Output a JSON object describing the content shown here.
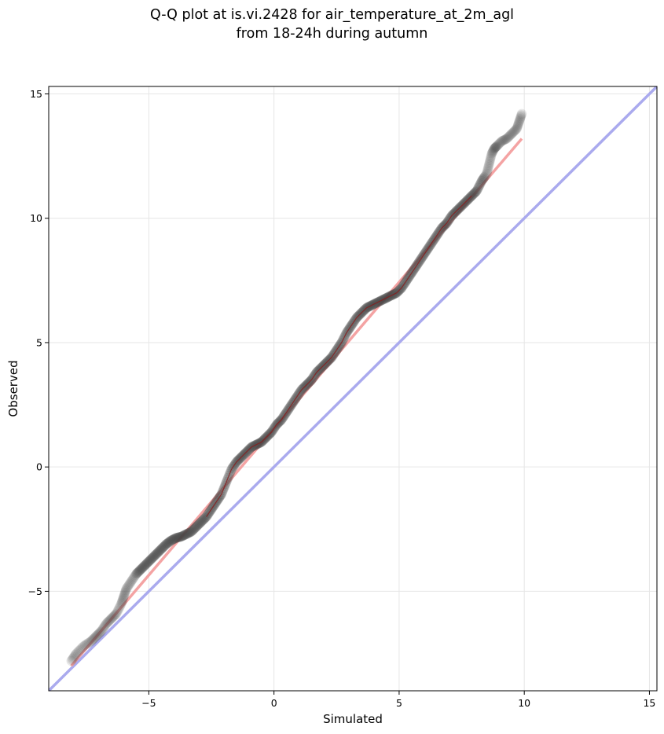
{
  "chart_data": {
    "type": "scatter",
    "title_line1": "Q-Q plot at is.vi.2428 for air_temperature_at_2m_agl",
    "title_line2": "from 18-24h during autumn",
    "xlabel": "Simulated",
    "ylabel": "Observed",
    "xlim": [
      -9.0,
      15.3
    ],
    "ylim": [
      -9.0,
      15.3
    ],
    "x_ticks": [
      -5,
      0,
      5,
      10,
      15
    ],
    "y_ticks": [
      -5,
      0,
      5,
      10,
      15
    ],
    "x_tick_labels": [
      "−5",
      "0",
      "5",
      "10",
      "15"
    ],
    "y_tick_labels": [
      "−5",
      "0",
      "5",
      "10",
      "15"
    ],
    "grid": true,
    "quantile_points": {
      "x": [
        -8.1,
        -7.9,
        -7.6,
        -7.3,
        -7.1,
        -6.9,
        -6.7,
        -6.5,
        -6.3,
        -6.1,
        -6.0,
        -5.9,
        -5.7,
        -5.5,
        -5.3,
        -5.1,
        -4.9,
        -4.7,
        -4.5,
        -4.3,
        -4.1,
        -3.9,
        -3.7,
        -3.5,
        -3.3,
        -3.1,
        -2.9,
        -2.7,
        -2.5,
        -2.3,
        -2.1,
        -1.9,
        -1.7,
        -1.5,
        -1.3,
        -1.1,
        -0.9,
        -0.7,
        -0.5,
        -0.3,
        -0.1,
        0.1,
        0.3,
        0.5,
        0.7,
        0.9,
        1.1,
        1.3,
        1.5,
        1.7,
        1.9,
        2.1,
        2.3,
        2.5,
        2.7,
        2.9,
        3.1,
        3.3,
        3.5,
        3.7,
        3.9,
        4.1,
        4.3,
        4.5,
        4.7,
        4.9,
        5.1,
        5.3,
        5.5,
        5.7,
        5.9,
        6.1,
        6.3,
        6.5,
        6.7,
        6.9,
        7.1,
        7.3,
        7.5,
        7.7,
        7.9,
        8.1,
        8.3,
        8.5,
        8.6,
        8.7,
        8.8,
        8.9,
        9.1,
        9.3,
        9.5,
        9.7,
        9.8,
        9.9
      ],
      "y": [
        -7.8,
        -7.5,
        -7.2,
        -7.0,
        -6.8,
        -6.6,
        -6.3,
        -6.1,
        -5.9,
        -5.5,
        -5.2,
        -4.9,
        -4.6,
        -4.3,
        -4.1,
        -3.9,
        -3.7,
        -3.5,
        -3.3,
        -3.1,
        -2.95,
        -2.85,
        -2.8,
        -2.7,
        -2.6,
        -2.4,
        -2.2,
        -2.0,
        -1.7,
        -1.4,
        -1.1,
        -0.6,
        -0.1,
        0.2,
        0.4,
        0.6,
        0.8,
        0.9,
        1.0,
        1.2,
        1.4,
        1.7,
        1.9,
        2.2,
        2.5,
        2.8,
        3.1,
        3.3,
        3.5,
        3.8,
        4.0,
        4.2,
        4.4,
        4.7,
        5.0,
        5.4,
        5.7,
        6.0,
        6.2,
        6.4,
        6.5,
        6.6,
        6.7,
        6.8,
        6.9,
        7.0,
        7.2,
        7.5,
        7.8,
        8.1,
        8.4,
        8.7,
        9.0,
        9.3,
        9.6,
        9.8,
        10.1,
        10.3,
        10.5,
        10.7,
        10.9,
        11.1,
        11.5,
        11.8,
        12.2,
        12.6,
        12.8,
        12.9,
        13.1,
        13.2,
        13.4,
        13.6,
        13.9,
        14.2
      ]
    },
    "fit_line": {
      "x": [
        -8.1,
        9.9
      ],
      "y": [
        -8.0,
        13.2
      ],
      "color": "#f4a3a3"
    },
    "identity_line": {
      "x": [
        -9.0,
        15.3
      ],
      "y": [
        -9.0,
        15.3
      ],
      "color": "#aaaaee"
    },
    "point_color": "#444444",
    "trace_color": "#8b1a1a"
  }
}
